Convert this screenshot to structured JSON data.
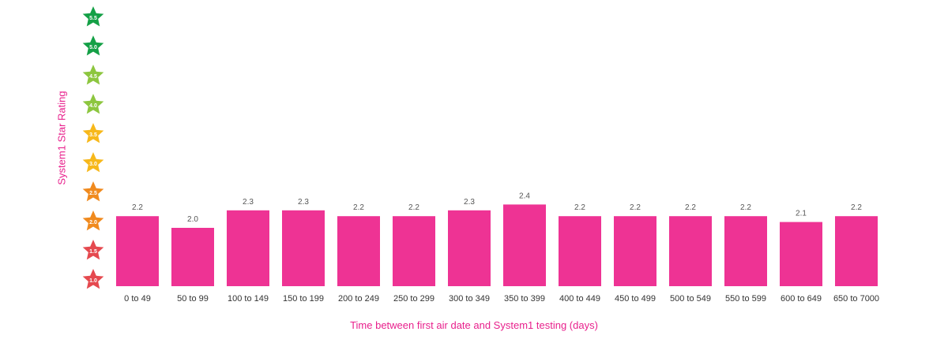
{
  "chart_data": {
    "type": "bar",
    "title": "",
    "xlabel": "Time between first air date and System1 testing (days)",
    "ylabel": "System1 Star Rating",
    "ylim": [
      1.0,
      5.5
    ],
    "y_ticks": [
      "1.0",
      "1.5",
      "2.0",
      "2.5",
      "3.0",
      "3.5",
      "4.0",
      "4.5",
      "5.0",
      "5.5"
    ],
    "y_tick_colors": [
      "#e5494f",
      "#e5494f",
      "#f08a1e",
      "#f08a1e",
      "#f7b81a",
      "#f7b81a",
      "#8dc63f",
      "#8dc63f",
      "#14a046",
      "#14a046"
    ],
    "categories": [
      "0 to 49",
      "50 to 99",
      "100 to 149",
      "150 to 199",
      "200 to 249",
      "250 to 299",
      "300 to 349",
      "350 to 399",
      "400 to 449",
      "450 to 499",
      "500 to 549",
      "550 to 599",
      "600 to 649",
      "650 to 7000"
    ],
    "values": [
      2.2,
      2.0,
      2.3,
      2.3,
      2.2,
      2.2,
      2.3,
      2.4,
      2.2,
      2.2,
      2.2,
      2.2,
      2.1,
      2.2
    ],
    "value_labels": [
      "2.2",
      "2.0",
      "2.3",
      "2.3",
      "2.2",
      "2.2",
      "2.3",
      "2.4",
      "2.2",
      "2.2",
      "2.2",
      "2.2",
      "2.1",
      "2.2"
    ],
    "bar_color": "#ee3394",
    "grid": false,
    "legend": "none"
  }
}
